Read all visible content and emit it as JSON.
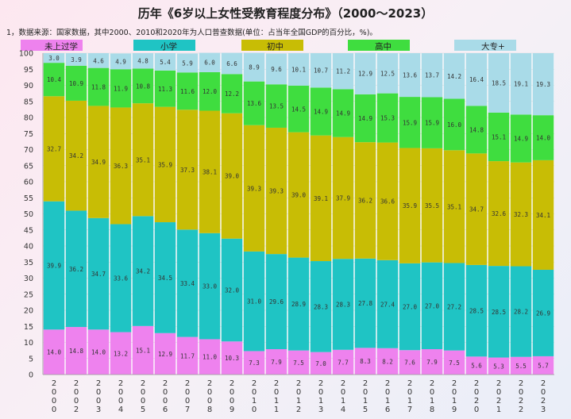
{
  "title": "历年《6岁以上女性受教育程度分布》（2000～2023）",
  "note": "1，数据来源：国家数据，其中2000、2010和2020年为人口普查数据(单位：占当年全国GDP的百分比，%)。",
  "legend": [
    {
      "label": "未上过学",
      "color": "#ee82ee"
    },
    {
      "label": "小学",
      "color": "#1fc4c4"
    },
    {
      "label": "初中",
      "color": "#c8bd05"
    },
    {
      "label": "高中",
      "color": "#3fdd3f"
    },
    {
      "label": "大专+",
      "color": "#a9dbe8"
    }
  ],
  "chart_data": {
    "type": "bar",
    "stacked": true,
    "categories": [
      "2000",
      "2002",
      "2003",
      "2004",
      "2005",
      "2006",
      "2007",
      "2008",
      "2009",
      "2010",
      "2011",
      "2012",
      "2013",
      "2014",
      "2015",
      "2016",
      "2017",
      "2018",
      "2019",
      "2020",
      "2021",
      "2022",
      "2023"
    ],
    "series": [
      {
        "name": "未上过学",
        "color": "#ee82ee",
        "values": [
          14.0,
          14.8,
          14.0,
          13.2,
          15.1,
          12.9,
          11.7,
          11.0,
          10.3,
          7.3,
          7.9,
          7.5,
          7.0,
          7.7,
          8.3,
          8.2,
          7.6,
          7.9,
          7.5,
          5.6,
          5.3,
          5.5,
          5.7
        ]
      },
      {
        "name": "小学",
        "color": "#1fc4c4",
        "values": [
          39.9,
          36.2,
          34.7,
          33.6,
          34.2,
          34.5,
          33.4,
          33.0,
          32.0,
          31.0,
          29.6,
          28.9,
          28.3,
          28.3,
          27.8,
          27.4,
          27.0,
          27.0,
          27.2,
          28.5,
          28.5,
          28.2,
          26.9
        ]
      },
      {
        "name": "初中",
        "color": "#c8bd05",
        "values": [
          32.7,
          34.2,
          34.9,
          36.3,
          35.1,
          35.9,
          37.3,
          38.1,
          39.0,
          39.3,
          39.3,
          39.0,
          39.1,
          37.9,
          36.2,
          36.6,
          35.9,
          35.5,
          35.1,
          34.7,
          32.6,
          32.3,
          34.1
        ]
      },
      {
        "name": "高中",
        "color": "#3fdd3f",
        "values": [
          10.4,
          10.9,
          11.8,
          11.9,
          10.8,
          11.3,
          11.6,
          12.0,
          12.2,
          13.6,
          13.5,
          14.5,
          14.9,
          14.9,
          14.9,
          15.3,
          15.9,
          15.9,
          16.0,
          14.8,
          15.1,
          14.9,
          14.0
        ]
      },
      {
        "name": "大专+",
        "color": "#a9dbe8",
        "values": [
          3.0,
          3.9,
          4.6,
          4.9,
          4.8,
          5.4,
          5.9,
          6.0,
          6.6,
          8.9,
          9.6,
          10.1,
          10.7,
          11.2,
          12.9,
          12.5,
          13.6,
          13.7,
          14.2,
          16.4,
          18.5,
          19.1,
          19.3
        ]
      }
    ],
    "ylim": [
      0,
      100
    ],
    "yticks": [
      0,
      5,
      10,
      15,
      20,
      25,
      30,
      35,
      40,
      45,
      50,
      55,
      60,
      65,
      70,
      75,
      80,
      85,
      90,
      95,
      100
    ],
    "xlabel": "",
    "ylabel": "",
    "legend_position": "top"
  }
}
